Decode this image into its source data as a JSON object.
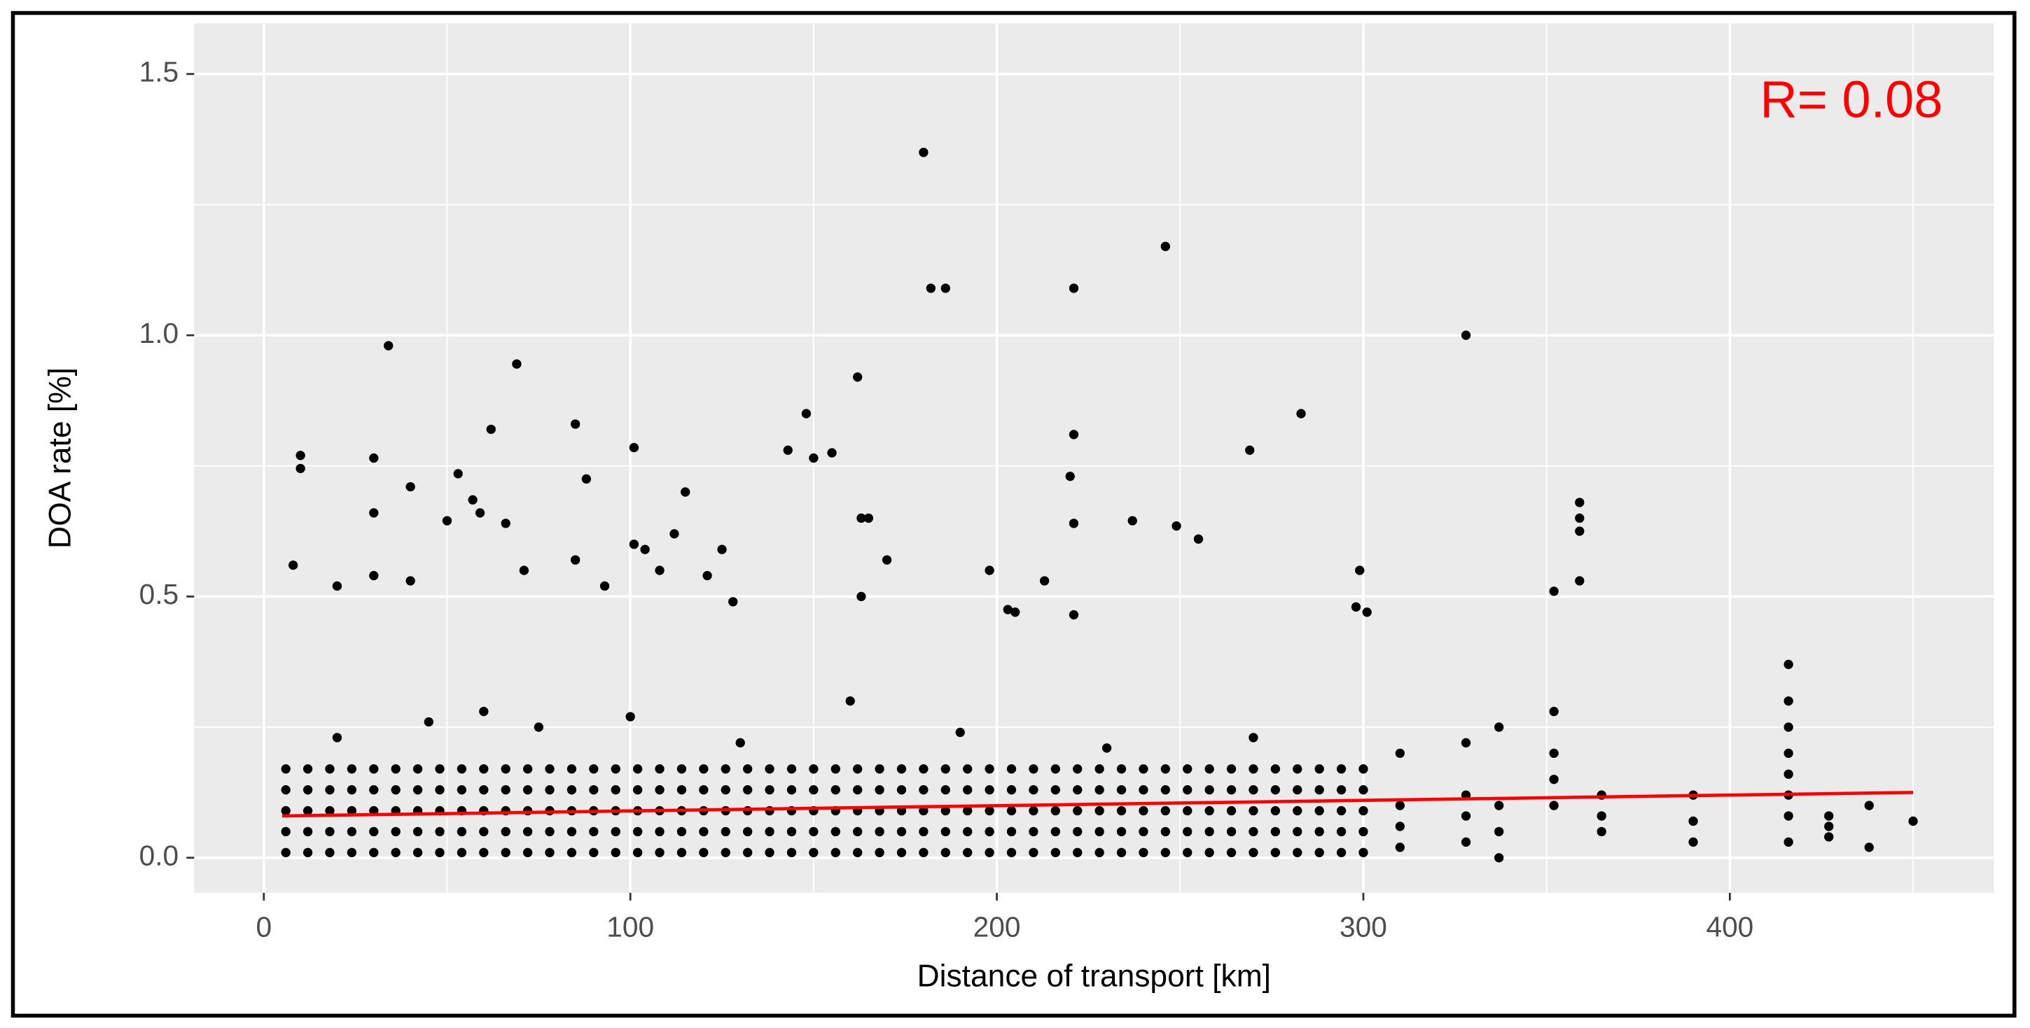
{
  "chart_data": {
    "type": "scatter",
    "xlabel": "Distance of transport [km]",
    "ylabel": "DOA rate [%]",
    "annotation": "R= 0.08",
    "annotation_color": "#ff0000",
    "xlim": [
      -19,
      472
    ],
    "ylim": [
      -0.067,
      1.597
    ],
    "xticks": [
      0,
      100,
      200,
      300,
      400
    ],
    "yticks": [
      {
        "value": 0,
        "label": "0.0"
      },
      0.5,
      {
        "value": 1,
        "label": "1.0"
      },
      1.5
    ],
    "xminor": [
      50,
      150,
      250,
      350,
      450
    ],
    "yminor": [
      0.25,
      0.75,
      1.25
    ],
    "grid": true,
    "series": [
      {
        "color": "#000000",
        "x": [
          6,
          6,
          6,
          6,
          6,
          12,
          12,
          12,
          12,
          12,
          18,
          18,
          18,
          18,
          18,
          24,
          24,
          24,
          24,
          24,
          30,
          30,
          30,
          30,
          30,
          36,
          36,
          36,
          36,
          36,
          42,
          42,
          42,
          42,
          42,
          48,
          48,
          48,
          48,
          48,
          54,
          54,
          54,
          54,
          54,
          60,
          60,
          60,
          60,
          60,
          66,
          66,
          66,
          66,
          66,
          72,
          72,
          72,
          72,
          72,
          78,
          78,
          78,
          78,
          78,
          84,
          84,
          84,
          84,
          84,
          90,
          90,
          90,
          90,
          90,
          96,
          96,
          96,
          96,
          96,
          102,
          102,
          102,
          102,
          102,
          108,
          108,
          108,
          108,
          108,
          114,
          114,
          114,
          114,
          114,
          120,
          120,
          120,
          120,
          120,
          126,
          126,
          126,
          126,
          126,
          132,
          132,
          132,
          132,
          132,
          138,
          138,
          138,
          138,
          138,
          144,
          144,
          144,
          144,
          144,
          150,
          150,
          150,
          150,
          150,
          156,
          156,
          156,
          156,
          156,
          162,
          162,
          162,
          162,
          162,
          168,
          168,
          168,
          168,
          168,
          174,
          174,
          174,
          174,
          174,
          180,
          180,
          180,
          180,
          180,
          186,
          186,
          186,
          186,
          186,
          192,
          192,
          192,
          192,
          192,
          198,
          198,
          198,
          198,
          198,
          204,
          204,
          204,
          204,
          204,
          210,
          210,
          210,
          210,
          210,
          216,
          216,
          216,
          216,
          216,
          222,
          222,
          222,
          222,
          222,
          228,
          228,
          228,
          228,
          228,
          234,
          234,
          234,
          234,
          234,
          240,
          240,
          240,
          240,
          240,
          246,
          246,
          246,
          246,
          246,
          252,
          252,
          252,
          252,
          252,
          258,
          258,
          258,
          258,
          258,
          264,
          264,
          264,
          264,
          264,
          270,
          270,
          270,
          270,
          270,
          276,
          276,
          276,
          276,
          276,
          282,
          282,
          282,
          282,
          282,
          288,
          288,
          288,
          288,
          288,
          294,
          294,
          294,
          294,
          294,
          300,
          300,
          300,
          300,
          300
        ],
        "values": [
          0.01,
          0.05,
          0.09,
          0.13,
          0.17,
          0.01,
          0.05,
          0.09,
          0.13,
          0.17,
          0.01,
          0.05,
          0.09,
          0.13,
          0.17,
          0.01,
          0.05,
          0.09,
          0.13,
          0.17,
          0.01,
          0.05,
          0.09,
          0.13,
          0.17,
          0.01,
          0.05,
          0.09,
          0.13,
          0.17,
          0.01,
          0.05,
          0.09,
          0.13,
          0.17,
          0.01,
          0.05,
          0.09,
          0.13,
          0.17,
          0.01,
          0.05,
          0.09,
          0.13,
          0.17,
          0.01,
          0.05,
          0.09,
          0.13,
          0.17,
          0.01,
          0.05,
          0.09,
          0.13,
          0.17,
          0.01,
          0.05,
          0.09,
          0.13,
          0.17,
          0.01,
          0.05,
          0.09,
          0.13,
          0.17,
          0.01,
          0.05,
          0.09,
          0.13,
          0.17,
          0.01,
          0.05,
          0.09,
          0.13,
          0.17,
          0.01,
          0.05,
          0.09,
          0.13,
          0.17,
          0.01,
          0.05,
          0.09,
          0.13,
          0.17,
          0.01,
          0.05,
          0.09,
          0.13,
          0.17,
          0.01,
          0.05,
          0.09,
          0.13,
          0.17,
          0.01,
          0.05,
          0.09,
          0.13,
          0.17,
          0.01,
          0.05,
          0.09,
          0.13,
          0.17,
          0.01,
          0.05,
          0.09,
          0.13,
          0.17,
          0.01,
          0.05,
          0.09,
          0.13,
          0.17,
          0.01,
          0.05,
          0.09,
          0.13,
          0.17,
          0.01,
          0.05,
          0.09,
          0.13,
          0.17,
          0.01,
          0.05,
          0.09,
          0.13,
          0.17,
          0.01,
          0.05,
          0.09,
          0.13,
          0.17,
          0.01,
          0.05,
          0.09,
          0.13,
          0.17,
          0.01,
          0.05,
          0.09,
          0.13,
          0.17,
          0.01,
          0.05,
          0.09,
          0.13,
          0.17,
          0.01,
          0.05,
          0.09,
          0.13,
          0.17,
          0.01,
          0.05,
          0.09,
          0.13,
          0.17,
          0.01,
          0.05,
          0.09,
          0.13,
          0.17,
          0.01,
          0.05,
          0.09,
          0.13,
          0.17,
          0.01,
          0.05,
          0.09,
          0.13,
          0.17,
          0.01,
          0.05,
          0.09,
          0.13,
          0.17,
          0.01,
          0.05,
          0.09,
          0.13,
          0.17,
          0.01,
          0.05,
          0.09,
          0.13,
          0.17,
          0.01,
          0.05,
          0.09,
          0.13,
          0.17,
          0.01,
          0.05,
          0.09,
          0.13,
          0.17,
          0.01,
          0.05,
          0.09,
          0.13,
          0.17,
          0.01,
          0.05,
          0.09,
          0.13,
          0.17,
          0.01,
          0.05,
          0.09,
          0.13,
          0.17,
          0.01,
          0.05,
          0.09,
          0.13,
          0.17,
          0.01,
          0.05,
          0.09,
          0.13,
          0.17,
          0.01,
          0.05,
          0.09,
          0.13,
          0.17,
          0.01,
          0.05,
          0.09,
          0.13,
          0.17,
          0.01,
          0.05,
          0.09,
          0.13,
          0.17,
          0.01,
          0.05,
          0.09,
          0.13,
          0.17,
          0.01,
          0.05,
          0.09,
          0.13,
          0.17
        ]
      },
      {
        "color": "#000000",
        "x": [
          180,
          182,
          186,
          246,
          221,
          328,
          34,
          69,
          162,
          221,
          283,
          85,
          148,
          62,
          30,
          10,
          10,
          101,
          143,
          150,
          155,
          269,
          220,
          88,
          40,
          53,
          115,
          359,
          359,
          359,
          30,
          57,
          59,
          50,
          66,
          163,
          165,
          237,
          221,
          249,
          255,
          101,
          104,
          112,
          125,
          8,
          20,
          30,
          40,
          71,
          85,
          121,
          170,
          198,
          299,
          352,
          359,
          213,
          163,
          93,
          108,
          128,
          203,
          205,
          221,
          298,
          301,
          20,
          45,
          60,
          75,
          100,
          130,
          160,
          190,
          230,
          270,
          310,
          310,
          310,
          310,
          328,
          328,
          328,
          328,
          337,
          337,
          337,
          337,
          352,
          352,
          352,
          352,
          365,
          365,
          365,
          390,
          390,
          390,
          416,
          416,
          416,
          416,
          416,
          416,
          416,
          416,
          427,
          427,
          427,
          438,
          438,
          450
        ],
        "values": [
          1.35,
          1.09,
          1.09,
          1.17,
          1.09,
          1.0,
          0.98,
          0.945,
          0.92,
          0.81,
          0.85,
          0.83,
          0.85,
          0.82,
          0.765,
          0.77,
          0.745,
          0.785,
          0.78,
          0.765,
          0.775,
          0.78,
          0.73,
          0.725,
          0.71,
          0.735,
          0.7,
          0.68,
          0.65,
          0.625,
          0.66,
          0.685,
          0.66,
          0.645,
          0.64,
          0.65,
          0.65,
          0.645,
          0.64,
          0.635,
          0.61,
          0.6,
          0.59,
          0.62,
          0.59,
          0.56,
          0.52,
          0.54,
          0.53,
          0.55,
          0.57,
          0.54,
          0.57,
          0.55,
          0.55,
          0.51,
          0.53,
          0.53,
          0.5,
          0.52,
          0.55,
          0.49,
          0.475,
          0.47,
          0.465,
          0.48,
          0.47,
          0.23,
          0.26,
          0.28,
          0.25,
          0.27,
          0.22,
          0.3,
          0.24,
          0.21,
          0.23,
          0.02,
          0.06,
          0.1,
          0.2,
          0.03,
          0.08,
          0.12,
          0.22,
          0,
          0.05,
          0.1,
          0.25,
          0.1,
          0.15,
          0.2,
          0.28,
          0.05,
          0.08,
          0.12,
          0.03,
          0.07,
          0.12,
          0.03,
          0.08,
          0.12,
          0.16,
          0.2,
          0.25,
          0.3,
          0.37,
          0.04,
          0.06,
          0.08,
          0.02,
          0.1,
          0.07
        ]
      }
    ],
    "fit": {
      "color": "#ff0000",
      "x": [
        5,
        450
      ],
      "values": [
        0.08,
        0.125
      ]
    }
  }
}
